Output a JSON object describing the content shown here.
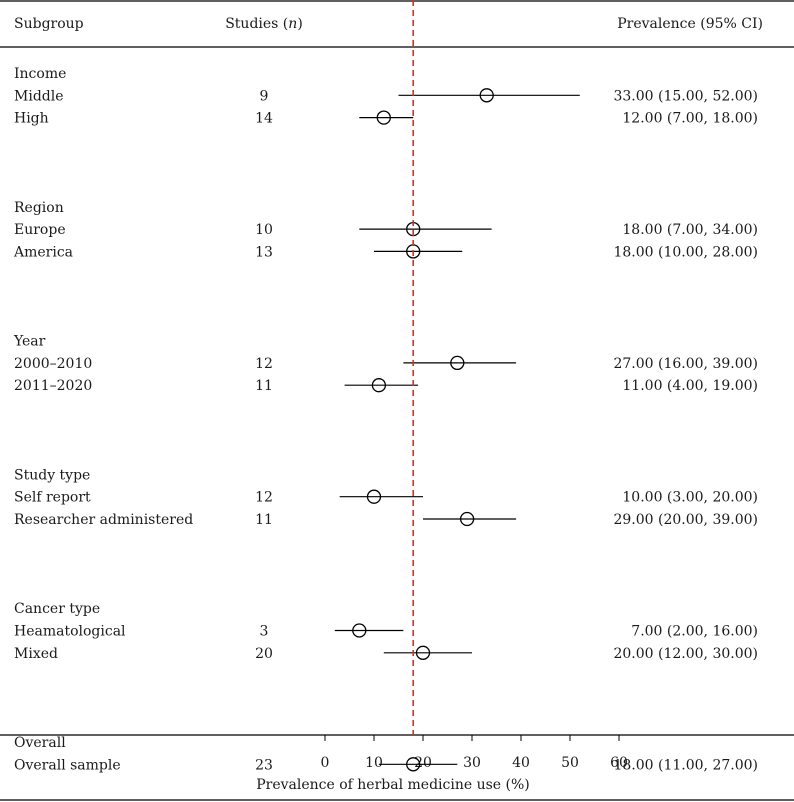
{
  "headers": {
    "subgroup": "Subgroup",
    "studies_prefix": "Studies (",
    "studies_italic": "n",
    "studies_suffix": ")",
    "prevalence": "Prevalence (95% CI)"
  },
  "chart_data": {
    "type": "forest",
    "title": "",
    "xlabel": "Prevalence of herbal medicine use (%)",
    "xlim": [
      0,
      60
    ],
    "xticks": [
      "0",
      "10",
      "20",
      "30",
      "40",
      "50",
      "60"
    ],
    "reference_line": 18,
    "reference_color": "#c0392b",
    "groups": [
      {
        "label": "Income",
        "rows": [
          {
            "label": "Middle",
            "n": "9",
            "est": 33,
            "lo": 15,
            "hi": 52,
            "ci_text": "33.00 (15.00, 52.00)"
          },
          {
            "label": "High",
            "n": "14",
            "est": 12,
            "lo": 7,
            "hi": 18,
            "ci_text": "12.00 (7.00, 18.00)"
          }
        ]
      },
      {
        "label": "Region",
        "rows": [
          {
            "label": "Europe",
            "n": "10",
            "est": 18,
            "lo": 7,
            "hi": 34,
            "ci_text": "18.00 (7.00, 34.00)"
          },
          {
            "label": "America",
            "n": "13",
            "est": 18,
            "lo": 10,
            "hi": 28,
            "ci_text": "18.00 (10.00, 28.00)"
          }
        ]
      },
      {
        "label": "Year",
        "rows": [
          {
            "label": "2000–2010",
            "n": "12",
            "est": 27,
            "lo": 16,
            "hi": 39,
            "ci_text": "27.00 (16.00, 39.00)"
          },
          {
            "label": "2011–2020",
            "n": "11",
            "est": 11,
            "lo": 4,
            "hi": 19,
            "ci_text": "11.00 (4.00, 19.00)"
          }
        ]
      },
      {
        "label": "Study type",
        "rows": [
          {
            "label": "Self report",
            "n": "12",
            "est": 10,
            "lo": 3,
            "hi": 20,
            "ci_text": "10.00 (3.00, 20.00)"
          },
          {
            "label": "Researcher administered",
            "n": "11",
            "est": 29,
            "lo": 20,
            "hi": 39,
            "ci_text": "29.00 (20.00, 39.00)"
          }
        ]
      },
      {
        "label": "Cancer type",
        "rows": [
          {
            "label": "Heamatological",
            "n": "3",
            "est": 7,
            "lo": 2,
            "hi": 16,
            "ci_text": "7.00 (2.00, 16.00)"
          },
          {
            "label": "Mixed",
            "n": "20",
            "est": 20,
            "lo": 12,
            "hi": 30,
            "ci_text": "20.00 (12.00, 30.00)"
          }
        ]
      },
      {
        "label": "Overall",
        "rows": [
          {
            "label": "Overall sample",
            "n": "23",
            "est": 18,
            "lo": 11,
            "hi": 27,
            "ci_text": "18.00 (11.00, 27.00)"
          }
        ]
      }
    ]
  }
}
